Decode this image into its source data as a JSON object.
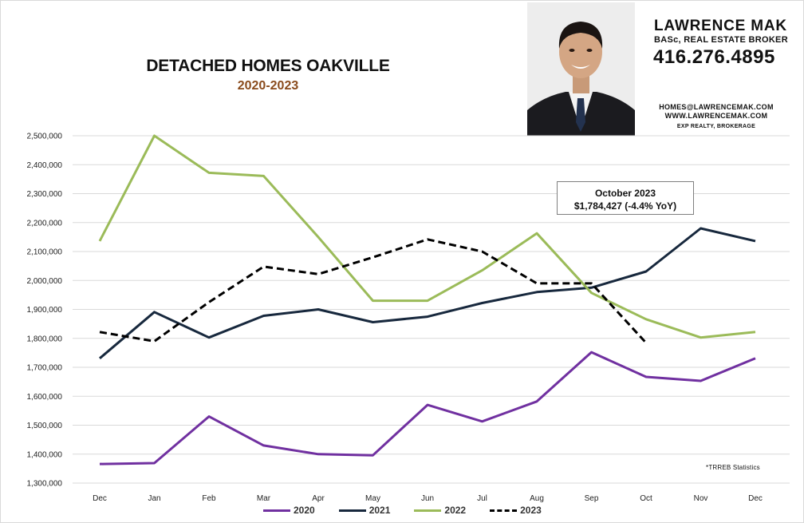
{
  "header": {
    "title": "DETACHED HOMES OAKVILLE",
    "subtitle": "2020-2023"
  },
  "brand": {
    "name": "LAWRENCE MAK",
    "title": "BASc, REAL ESTATE BROKER",
    "phone": "416.276.4895",
    "email": "HOMES@LAWRENCEMAK.COM",
    "website": "WWW.LAWRENCEMAK.COM",
    "brokerage": "EXP REALTY, BROKERAGE"
  },
  "callout": {
    "line1": "October 2023",
    "line2": "$1,784,427  (-4.4%  YoY)"
  },
  "source_note": "*TRREB Statistics",
  "chart_data": {
    "type": "line",
    "title": "DETACHED HOMES OAKVILLE",
    "subtitle": "2020-2023",
    "xlabel": "",
    "ylabel": "",
    "categories": [
      "Dec",
      "Jan",
      "Feb",
      "Mar",
      "Apr",
      "May",
      "Jun",
      "Jul",
      "Aug",
      "Sep",
      "Oct",
      "Nov",
      "Dec"
    ],
    "ylim": [
      1300000,
      2500000
    ],
    "y_ticks": [
      "1,300,000",
      "1,400,000",
      "1,500,000",
      "1,600,000",
      "1,700,000",
      "1,800,000",
      "1,900,000",
      "2,000,000",
      "2,100,000",
      "2,200,000",
      "2,300,000",
      "2,400,000",
      "2,500,000"
    ],
    "grid": true,
    "legend_position": "bottom",
    "series": [
      {
        "name": "2020",
        "color": "#7030a0",
        "dash": false,
        "values": [
          1366000,
          1369000,
          1530000,
          1430000,
          1400000,
          1396000,
          1570000,
          1513000,
          1582000,
          1752000,
          1667000,
          1653000,
          1731000
        ]
      },
      {
        "name": "2021",
        "color": "#17283d",
        "dash": false,
        "values": [
          1731000,
          1891000,
          1803000,
          1878000,
          1900000,
          1856000,
          1875000,
          1922000,
          1960000,
          1975000,
          2031000,
          2180000,
          2136000
        ]
      },
      {
        "name": "2022",
        "color": "#9bbb59",
        "dash": false,
        "values": [
          2136000,
          2500000,
          2372000,
          2361000,
          2150000,
          1930000,
          1930000,
          2035000,
          2163000,
          1957000,
          1866000,
          1803000,
          1822000
        ]
      },
      {
        "name": "2023",
        "color": "#000000",
        "dash": true,
        "values": [
          1822000,
          1790000,
          1925000,
          2048000,
          2022000,
          2080000,
          2142000,
          2100000,
          1990000,
          1990000,
          1784427,
          null,
          null
        ]
      }
    ]
  }
}
